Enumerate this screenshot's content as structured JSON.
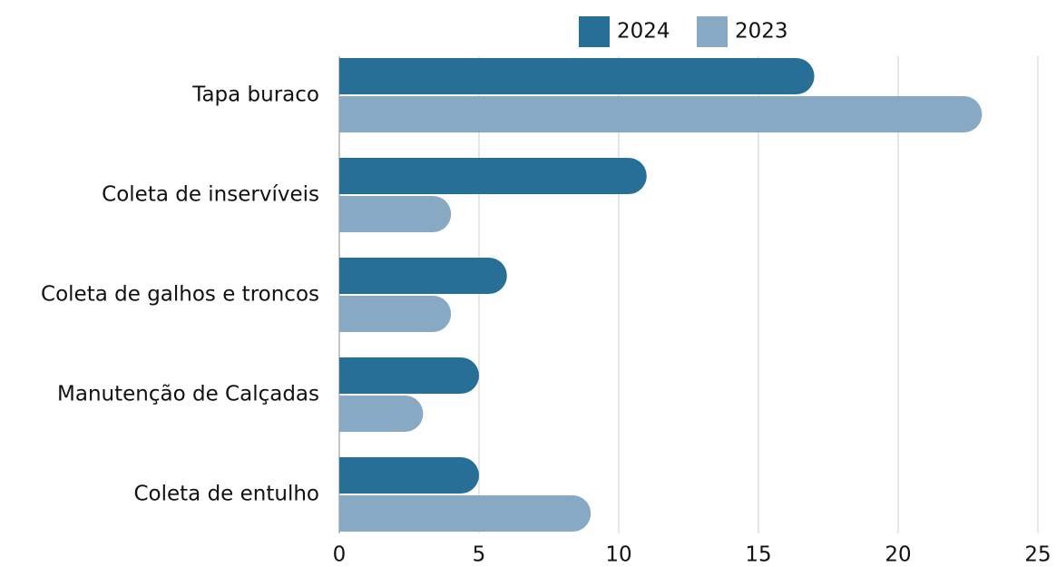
{
  "chart_data": {
    "type": "bar",
    "orientation": "horizontal",
    "categories": [
      "Tapa buraco",
      "Coleta de inservíveis",
      "Coleta de galhos e troncos",
      "Manutenção de Calçadas",
      "Coleta de entulho"
    ],
    "series": [
      {
        "name": "2024",
        "color": "#276f96",
        "values": [
          17,
          11,
          6,
          5,
          5
        ]
      },
      {
        "name": "2023",
        "color": "#88a9c4",
        "values": [
          23,
          4,
          4,
          3,
          9
        ]
      }
    ],
    "xlim": [
      0,
      25
    ],
    "xticks": [
      0,
      5,
      10,
      15,
      20,
      25
    ],
    "grid": true,
    "legend": "top"
  }
}
